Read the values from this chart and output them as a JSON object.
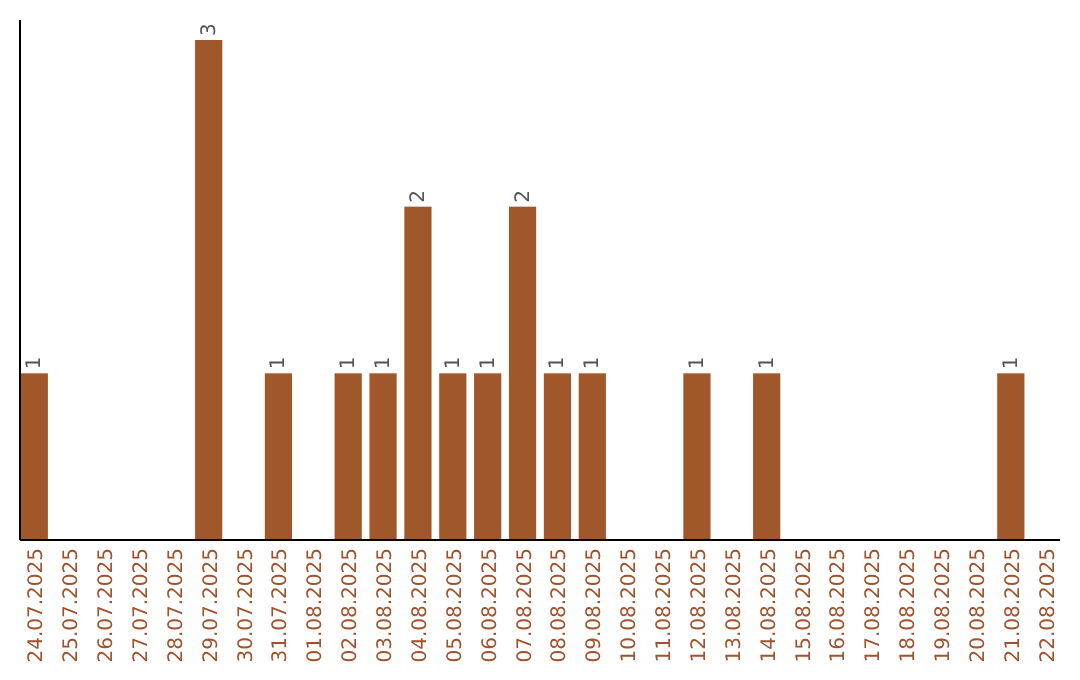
{
  "chart_data": {
    "type": "bar",
    "categories": [
      "24.07.2025",
      "25.07.2025",
      "26.07.2025",
      "27.07.2025",
      "28.07.2025",
      "29.07.2025",
      "30.07.2025",
      "31.07.2025",
      "01.08.2025",
      "02.08.2025",
      "03.08.2025",
      "04.08.2025",
      "05.08.2025",
      "06.08.2025",
      "07.08.2025",
      "08.08.2025",
      "09.08.2025",
      "10.08.2025",
      "11.08.2025",
      "12.08.2025",
      "13.08.2025",
      "14.08.2025",
      "15.08.2025",
      "16.08.2025",
      "17.08.2025",
      "18.08.2025",
      "19.08.2025",
      "20.08.2025",
      "21.08.2025",
      "22.08.2025"
    ],
    "values": [
      1,
      0,
      0,
      0,
      0,
      3,
      0,
      1,
      0,
      1,
      1,
      2,
      1,
      1,
      2,
      1,
      1,
      0,
      0,
      1,
      0,
      1,
      0,
      0,
      0,
      0,
      0,
      0,
      1,
      0
    ],
    "value_labels": [
      "1",
      null,
      null,
      null,
      null,
      "3",
      null,
      "1",
      null,
      "1",
      "1",
      "2",
      "1",
      "1",
      "2",
      "1",
      "1",
      null,
      null,
      "1",
      null,
      "1",
      null,
      null,
      null,
      null,
      null,
      null,
      "1",
      null
    ],
    "color": "#a0572a"
  }
}
